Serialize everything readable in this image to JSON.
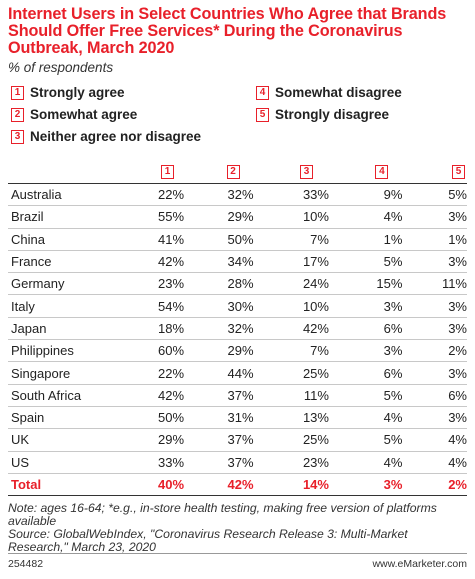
{
  "title": "Internet Users in Select Countries Who Agree that Brands Should Offer Free Services* During the Coronavirus Outbreak, March 2020",
  "subtitle": "% of respondents",
  "legend": [
    {
      "num": "1",
      "label": "Strongly agree"
    },
    {
      "num": "2",
      "label": "Somewhat agree"
    },
    {
      "num": "3",
      "label": "Neither agree nor disagree"
    },
    {
      "num": "4",
      "label": "Somewhat disagree"
    },
    {
      "num": "5",
      "label": "Strongly disagree"
    }
  ],
  "notes": {
    "note": "Note: ages 16-64; *e.g., in-store health testing, making free version of platforms available",
    "source": "Source: GlobalWebIndex, \"Coronavirus Research Release 3: Multi-Market Research,\" March 23, 2020"
  },
  "footer": {
    "id": "254482",
    "brand": "www.eMarketer.com"
  },
  "colors": {
    "accent": "#e8202a"
  },
  "chart_data": {
    "type": "table",
    "columns": [
      "1",
      "2",
      "3",
      "4",
      "5"
    ],
    "rows": [
      {
        "name": "Australia",
        "values": [
          "22%",
          "32%",
          "33%",
          "9%",
          "5%"
        ]
      },
      {
        "name": "Brazil",
        "values": [
          "55%",
          "29%",
          "10%",
          "4%",
          "3%"
        ]
      },
      {
        "name": "China",
        "values": [
          "41%",
          "50%",
          "7%",
          "1%",
          "1%"
        ]
      },
      {
        "name": "France",
        "values": [
          "42%",
          "34%",
          "17%",
          "5%",
          "3%"
        ]
      },
      {
        "name": "Germany",
        "values": [
          "23%",
          "28%",
          "24%",
          "15%",
          "11%"
        ]
      },
      {
        "name": "Italy",
        "values": [
          "54%",
          "30%",
          "10%",
          "3%",
          "3%"
        ]
      },
      {
        "name": "Japan",
        "values": [
          "18%",
          "32%",
          "42%",
          "6%",
          "3%"
        ]
      },
      {
        "name": "Philippines",
        "values": [
          "60%",
          "29%",
          "7%",
          "3%",
          "2%"
        ]
      },
      {
        "name": "Singapore",
        "values": [
          "22%",
          "44%",
          "25%",
          "6%",
          "3%"
        ]
      },
      {
        "name": "South Africa",
        "values": [
          "42%",
          "37%",
          "11%",
          "5%",
          "6%"
        ]
      },
      {
        "name": "Spain",
        "values": [
          "50%",
          "31%",
          "13%",
          "4%",
          "3%"
        ]
      },
      {
        "name": "UK",
        "values": [
          "29%",
          "37%",
          "25%",
          "5%",
          "4%"
        ]
      },
      {
        "name": "US",
        "values": [
          "33%",
          "37%",
          "23%",
          "4%",
          "4%"
        ]
      }
    ],
    "total": {
      "name": "Total",
      "values": [
        "40%",
        "42%",
        "14%",
        "3%",
        "2%"
      ]
    }
  }
}
